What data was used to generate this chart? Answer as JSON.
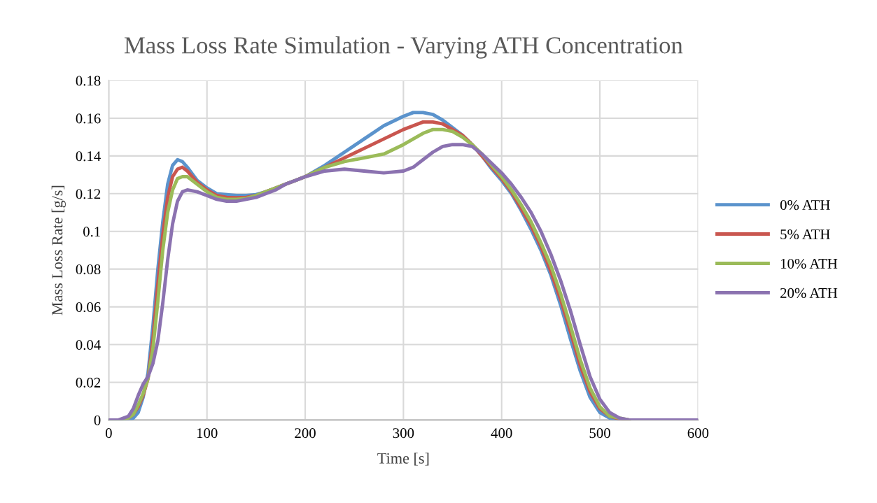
{
  "chart_data": {
    "type": "line",
    "title": "Mass Loss Rate Simulation - Varying ATH Concentration",
    "xlabel": "Time [s]",
    "ylabel": "Mass Loss Rate [g/s]",
    "x": [
      0,
      10,
      20,
      25,
      30,
      35,
      40,
      45,
      50,
      55,
      60,
      65,
      70,
      75,
      80,
      90,
      100,
      110,
      120,
      130,
      140,
      150,
      160,
      170,
      180,
      190,
      200,
      220,
      240,
      260,
      280,
      300,
      310,
      320,
      330,
      340,
      350,
      360,
      370,
      380,
      390,
      400,
      410,
      420,
      430,
      440,
      450,
      460,
      470,
      480,
      490,
      500,
      510,
      520,
      530,
      550,
      600
    ],
    "series": [
      {
        "name": "0% ATH",
        "color": "#5b93cc",
        "values": [
          0,
          0,
          0,
          0.001,
          0.004,
          0.012,
          0.025,
          0.05,
          0.08,
          0.105,
          0.125,
          0.135,
          0.138,
          0.137,
          0.134,
          0.127,
          0.123,
          0.12,
          0.1195,
          0.119,
          0.119,
          0.1195,
          0.121,
          0.123,
          0.125,
          0.127,
          0.129,
          0.135,
          0.142,
          0.149,
          0.156,
          0.161,
          0.163,
          0.163,
          0.162,
          0.159,
          0.155,
          0.151,
          0.146,
          0.14,
          0.133,
          0.127,
          0.12,
          0.111,
          0.101,
          0.09,
          0.077,
          0.061,
          0.043,
          0.026,
          0.012,
          0.004,
          0.001,
          0,
          0,
          null,
          null
        ]
      },
      {
        "name": "5% ATH",
        "color": "#c9564f",
        "values": [
          null,
          null,
          0.001,
          0.003,
          0.007,
          0.013,
          0.022,
          0.043,
          0.072,
          0.098,
          0.118,
          0.129,
          0.133,
          0.134,
          0.132,
          0.126,
          0.122,
          0.119,
          0.118,
          0.1178,
          0.118,
          0.119,
          0.121,
          0.123,
          0.125,
          0.127,
          0.129,
          0.134,
          0.139,
          0.144,
          0.149,
          0.154,
          0.156,
          0.158,
          0.158,
          0.157,
          0.154,
          0.151,
          0.146,
          0.14,
          0.134,
          0.128,
          0.121,
          0.112,
          0.103,
          0.092,
          0.079,
          0.064,
          0.047,
          0.029,
          0.015,
          0.006,
          0.002,
          0.0005,
          0,
          null,
          null
        ]
      },
      {
        "name": "10% ATH",
        "color": "#9bbb59",
        "values": [
          0,
          0,
          0.001,
          0.003,
          0.008,
          0.014,
          0.022,
          0.038,
          0.063,
          0.09,
          0.11,
          0.122,
          0.128,
          0.129,
          0.129,
          0.125,
          0.121,
          0.118,
          0.117,
          0.117,
          0.1175,
          0.119,
          0.121,
          0.123,
          0.125,
          0.127,
          0.129,
          0.134,
          0.137,
          0.139,
          0.141,
          0.146,
          0.149,
          0.152,
          0.154,
          0.154,
          0.153,
          0.15,
          0.146,
          0.141,
          0.135,
          0.129,
          0.122,
          0.114,
          0.105,
          0.094,
          0.082,
          0.067,
          0.05,
          0.032,
          0.017,
          0.007,
          0.002,
          0.001,
          0,
          null,
          null
        ]
      },
      {
        "name": "20% ATH",
        "color": "#8b72b0",
        "values": [
          0,
          0,
          0.002,
          0.006,
          0.013,
          0.019,
          0.023,
          0.03,
          0.042,
          0.062,
          0.085,
          0.104,
          0.116,
          0.121,
          0.122,
          0.121,
          0.119,
          0.117,
          0.116,
          0.116,
          0.117,
          0.118,
          0.12,
          0.122,
          0.125,
          0.127,
          0.129,
          0.132,
          0.133,
          0.132,
          0.131,
          0.132,
          0.134,
          0.138,
          0.142,
          0.145,
          0.146,
          0.146,
          0.145,
          0.141,
          0.136,
          0.131,
          0.125,
          0.118,
          0.11,
          0.1,
          0.088,
          0.074,
          0.058,
          0.04,
          0.023,
          0.011,
          0.004,
          0.001,
          0,
          0,
          0
        ]
      }
    ],
    "xlim": [
      0,
      600
    ],
    "xticks": [
      0,
      100,
      200,
      300,
      400,
      500,
      600
    ],
    "ylim": [
      0,
      0.18
    ],
    "yticks": [
      0,
      0.02,
      0.04,
      0.06,
      0.08,
      0.1,
      0.12,
      0.14,
      0.16,
      0.18
    ],
    "grid": true,
    "legend": "right",
    "marker": "none",
    "line_style": "solid"
  }
}
